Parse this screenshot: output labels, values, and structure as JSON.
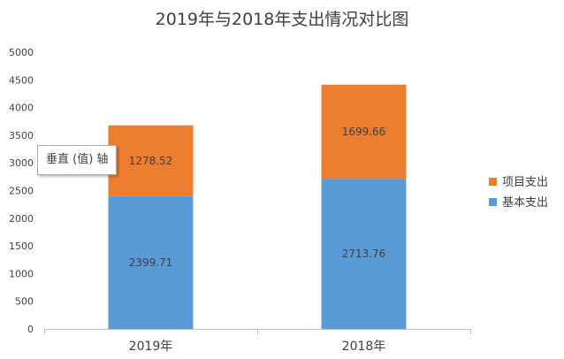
{
  "chart_data": {
    "type": "bar",
    "stacked": true,
    "title": "2019年与2018年支出情况对比图",
    "categories": [
      "2019年",
      "2018年"
    ],
    "series": [
      {
        "name": "基本支出",
        "values": [
          2399.71,
          2713.76
        ],
        "labels": [
          "2399.71",
          "2713.76"
        ],
        "color": "#5b9bd5"
      },
      {
        "name": "项目支出",
        "values": [
          1278.52,
          1699.66
        ],
        "labels": [
          "1278.52",
          "1699.66"
        ],
        "color": "#ed7d31"
      }
    ],
    "ylim": [
      0,
      5000
    ],
    "yticks": [
      "0",
      "500",
      "1000",
      "1500",
      "2000",
      "2500",
      "3000",
      "3500",
      "4000",
      "4500",
      "5000"
    ],
    "ytick_values": [
      0,
      500,
      1000,
      1500,
      2000,
      2500,
      3000,
      3500,
      4000,
      4500,
      5000
    ],
    "grid": false,
    "legend_position": "right",
    "legend_order": [
      "项目支出",
      "基本支出"
    ]
  },
  "tooltip": {
    "text": "垂直 (值) 轴"
  },
  "colors": {
    "axis": "#bfbfbf",
    "text": "#404040",
    "title": "#404040"
  }
}
